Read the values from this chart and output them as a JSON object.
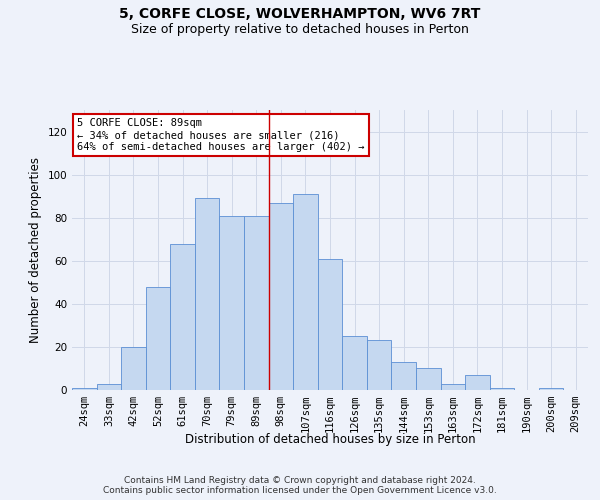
{
  "title_line1": "5, CORFE CLOSE, WOLVERHAMPTON, WV6 7RT",
  "title_line2": "Size of property relative to detached houses in Perton",
  "xlabel": "Distribution of detached houses by size in Perton",
  "ylabel": "Number of detached properties",
  "footnote": "Contains HM Land Registry data © Crown copyright and database right 2024.\nContains public sector information licensed under the Open Government Licence v3.0.",
  "annotation_title": "5 CORFE CLOSE: 89sqm",
  "annotation_line1": "← 34% of detached houses are smaller (216)",
  "annotation_line2": "64% of semi-detached houses are larger (402) →",
  "bar_labels": [
    "24sqm",
    "33sqm",
    "42sqm",
    "52sqm",
    "61sqm",
    "70sqm",
    "79sqm",
    "89sqm",
    "98sqm",
    "107sqm",
    "116sqm",
    "126sqm",
    "135sqm",
    "144sqm",
    "153sqm",
    "163sqm",
    "172sqm",
    "181sqm",
    "190sqm",
    "200sqm",
    "209sqm"
  ],
  "bar_values": [
    1,
    3,
    20,
    48,
    68,
    89,
    81,
    81,
    87,
    91,
    61,
    25,
    23,
    13,
    10,
    3,
    7,
    1,
    0,
    1,
    0
  ],
  "bar_color": "#c5d8f0",
  "bar_edge_color": "#5b8fd4",
  "red_line_index": 7,
  "ylim": [
    0,
    130
  ],
  "yticks": [
    0,
    20,
    40,
    60,
    80,
    100,
    120
  ],
  "grid_color": "#d0d8e8",
  "background_color": "#eef2fa",
  "annotation_box_color": "#ffffff",
  "annotation_box_edge": "#cc0000",
  "title_fontsize": 10,
  "subtitle_fontsize": 9,
  "axis_label_fontsize": 8.5,
  "tick_fontsize": 7.5,
  "footnote_fontsize": 6.5
}
